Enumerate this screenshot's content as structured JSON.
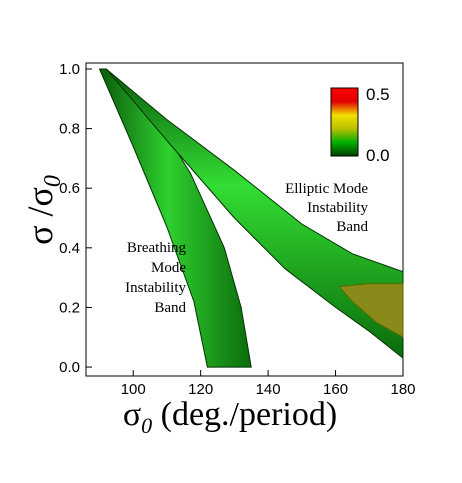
{
  "chart_data": {
    "type": "heatmap",
    "x_range": [
      86,
      180
    ],
    "y_range": [
      -0.03,
      1.02
    ],
    "x_ticks": [
      100,
      120,
      140,
      160,
      180
    ],
    "y_ticks": [
      0.0,
      0.2,
      0.4,
      0.6,
      0.8,
      1.0
    ],
    "x_tick_labels": [
      "100",
      "120",
      "140",
      "160",
      "180"
    ],
    "y_tick_labels": [
      "0.0",
      "0.2",
      "0.4",
      "0.6",
      "0.8",
      "1.0"
    ],
    "xlabel": {
      "base": "σ",
      "sub": "0",
      "rest": " (deg./period)"
    },
    "ylabel": {
      "num": "σ /σ",
      "sub": "0"
    },
    "colorbar": {
      "min_label": "0.0",
      "max_label": "0.5",
      "range": [
        0.0,
        0.5
      ],
      "colors": [
        "#004000",
        "#00b000",
        "#b8c000",
        "#f0e000",
        "#e00000",
        "#ff0000"
      ]
    },
    "annotations": [
      {
        "id": "elliptic",
        "lines": [
          "Elliptic Mode",
          "Instability",
          "Band"
        ]
      },
      {
        "id": "breathing",
        "lines": [
          "Breathing",
          "Mode",
          "Instability",
          "Band"
        ]
      }
    ],
    "series": [
      {
        "band": "breathing",
        "outer_left": [
          [
            90,
            1.0
          ],
          [
            100,
            0.74
          ],
          [
            110,
            0.47
          ],
          [
            118,
            0.22
          ],
          [
            122,
            0.0
          ]
        ],
        "outer_right": [
          [
            135,
            0.0
          ],
          [
            132,
            0.2
          ],
          [
            127,
            0.4
          ],
          [
            117,
            0.65
          ],
          [
            106,
            0.85
          ],
          [
            92,
            1.0
          ]
        ]
      },
      {
        "band": "elliptic",
        "outer_upper": [
          [
            92,
            1.0
          ],
          [
            110,
            0.83
          ],
          [
            130,
            0.66
          ],
          [
            150,
            0.48
          ],
          [
            165,
            0.38
          ],
          [
            180,
            0.32
          ]
        ],
        "outer_lower": [
          [
            180,
            0.03
          ],
          [
            170,
            0.12
          ],
          [
            160,
            0.2
          ],
          [
            145,
            0.33
          ],
          [
            130,
            0.5
          ],
          [
            110,
            0.76
          ],
          [
            92,
            1.0
          ]
        ],
        "core_region": [
          [
            161,
            0.27
          ],
          [
            170,
            0.28
          ],
          [
            180,
            0.28
          ],
          [
            180,
            0.1
          ],
          [
            172,
            0.15
          ],
          [
            165,
            0.22
          ]
        ]
      }
    ]
  }
}
